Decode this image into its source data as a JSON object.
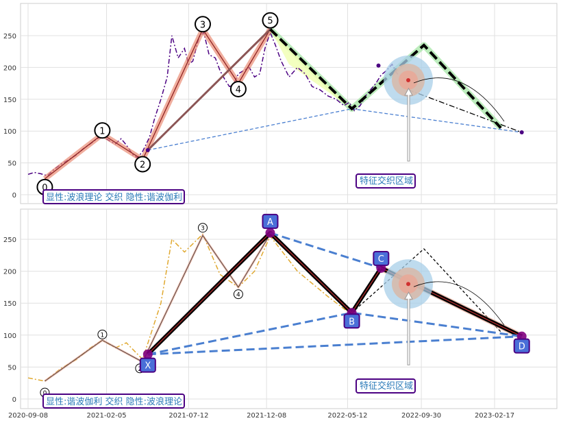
{
  "chart_data": [
    {
      "type": "line",
      "panel": "top",
      "ylim": [
        -12,
        298
      ],
      "yticks": [
        0,
        50,
        100,
        150,
        200,
        250
      ],
      "grid": true,
      "series": [
        {
          "style": "purple dash-dot",
          "color": "#4b0082",
          "x": [
            "2020-09-08",
            "2020-09-20",
            "2020-10-02",
            "2020-10-15",
            "2020-10-28",
            "2020-11-10",
            "2020-11-25",
            "2020-12-10",
            "2020-12-22",
            "2021-01-05",
            "2021-01-18",
            "2021-01-28",
            "2021-02-10",
            "2021-02-22",
            "2021-03-05",
            "2021-03-15",
            "2021-03-28",
            "2021-04-05",
            "2021-04-15",
            "2021-04-28",
            "2021-05-08",
            "2021-05-20",
            "2021-06-01",
            "2021-06-10",
            "2021-06-22",
            "2021-07-04",
            "2021-07-12",
            "2021-07-20",
            "2021-08-01",
            "2021-08-10",
            "2021-08-20",
            "2021-09-01",
            "2021-09-10",
            "2021-09-20",
            "2021-09-28",
            "2021-10-05",
            "2021-10-15",
            "2021-10-25",
            "2021-11-05",
            "2021-11-15",
            "2021-11-25",
            "2021-12-05",
            "2021-12-15",
            "2021-12-25",
            "2022-01-05",
            "2022-01-20",
            "2022-02-05",
            "2022-02-20",
            "2022-03-05",
            "2022-03-20",
            "2022-04-05",
            "2022-04-20",
            "2022-05-05",
            "2022-05-15",
            "2022-05-25",
            "2022-06-05",
            "2022-06-15",
            "2022-06-25",
            "2022-07-05",
            "2022-07-15",
            "2022-07-25",
            "2022-08-05",
            "2022-08-15",
            "2022-08-25",
            "2022-09-05"
          ],
          "y": [
            32,
            35,
            33,
            30,
            40,
            48,
            55,
            63,
            72,
            80,
            88,
            92,
            85,
            80,
            88,
            78,
            62,
            58,
            68,
            90,
            120,
            150,
            185,
            250,
            215,
            230,
            205,
            210,
            248,
            255,
            220,
            215,
            195,
            180,
            170,
            172,
            190,
            195,
            200,
            185,
            190,
            230,
            255,
            235,
            210,
            185,
            200,
            190,
            170,
            165,
            155,
            150,
            140,
            145,
            132,
            140,
            155,
            165,
            175,
            188,
            195,
            205,
            190,
            185,
            180
          ]
        },
        {
          "name": "",
          "color": "#e8836a",
          "x": [
            "2020-10-10",
            "2021-01-28",
            "2021-04-15",
            "2021-08-08",
            "2021-10-15",
            "2021-12-15"
          ],
          "y": [
            25,
            95,
            55,
            260,
            175,
            260
          ]
        },
        {
          "color": "#8b1a1a",
          "x": [
            "2020-10-10",
            "2021-01-28",
            "2021-04-15",
            "2021-08-08",
            "2021-10-15",
            "2021-12-15"
          ],
          "y": [
            25,
            95,
            55,
            260,
            175,
            260
          ]
        },
        {
          "color": "#8b5555",
          "x": [
            "2021-04-25",
            "2021-12-15"
          ],
          "y": [
            70,
            260
          ]
        },
        {
          "color": "#000000",
          "style": "thick dashed",
          "x": [
            "2021-12-15",
            "2022-05-20",
            "2022-10-05",
            "2023-03-01"
          ],
          "y": [
            260,
            135,
            235,
            105
          ]
        },
        {
          "color": "#000000",
          "style": "dash-dot",
          "x": [
            "2022-09-05",
            "2023-04-10"
          ],
          "y": [
            165,
            98
          ]
        },
        {
          "color": "#4a7fd0",
          "style": "dashed",
          "x": [
            "2021-04-25",
            "2022-05-20",
            "2023-04-10"
          ],
          "y": [
            70,
            135,
            98
          ]
        }
      ],
      "wave_labels": [
        "0",
        "1",
        "2",
        "3",
        "4",
        "5"
      ],
      "region_label": "特征交织区域",
      "caption": "显性:波浪理论 交织 隐性:谐波伽利"
    },
    {
      "type": "line",
      "panel": "bottom",
      "ylim": [
        -12,
        298
      ],
      "yticks": [
        0,
        50,
        100,
        150,
        200,
        250
      ],
      "xticks": [
        "2020-09-08",
        "2021-02-05",
        "2021-07-12",
        "2021-12-08",
        "2022-05-12",
        "2022-09-30",
        "2023-02-17"
      ],
      "grid": true,
      "series": [
        {
          "style": "gold dash-dot",
          "color": "#e0a82e",
          "x": [
            "2020-09-08",
            "2020-10-10",
            "2020-11-10",
            "2020-12-10",
            "2021-01-05",
            "2021-01-28",
            "2021-02-22",
            "2021-03-15",
            "2021-04-15",
            "2021-05-20",
            "2021-06-10",
            "2021-07-04",
            "2021-08-08",
            "2021-09-10",
            "2021-10-15",
            "2021-11-15",
            "2021-12-15",
            "2022-02-05",
            "2022-04-05",
            "2022-05-15"
          ],
          "y": [
            33,
            28,
            48,
            62,
            80,
            92,
            80,
            88,
            62,
            150,
            250,
            230,
            258,
            195,
            175,
            200,
            255,
            200,
            160,
            135
          ]
        },
        {
          "color": "#000000",
          "style": "thick",
          "x": [
            "2021-04-25",
            "2021-12-15",
            "2022-05-20",
            "2022-07-15",
            "2023-04-10"
          ],
          "y": [
            70,
            260,
            135,
            205,
            98
          ]
        },
        {
          "color": "#4a7fd0",
          "style": "thick dashed",
          "x": [
            "2021-04-25",
            "2022-05-20",
            "2023-04-10"
          ],
          "y": [
            70,
            135,
            98
          ]
        },
        {
          "color": "#4a7fd0",
          "style": "thick dashed",
          "x": [
            "2021-12-15",
            "2022-07-15"
          ],
          "y": [
            260,
            205
          ]
        },
        {
          "color": "#4a7fd0",
          "style": "thick dashed",
          "x": [
            "2021-04-25",
            "2023-04-10"
          ],
          "y": [
            70,
            98
          ]
        },
        {
          "color": "#000000",
          "style": "dashed",
          "x": [
            "2022-05-20",
            "2022-10-05",
            "2023-03-01"
          ],
          "y": [
            135,
            235,
            105
          ]
        }
      ],
      "pattern_labels": [
        "X",
        "A",
        "B",
        "C",
        "D"
      ],
      "wave_labels": [
        "0",
        "1",
        "2",
        "3",
        "4"
      ],
      "region_label": "特征交织区域",
      "caption": "显性:谐波伽利 交织 隐性:波浪理论"
    }
  ]
}
